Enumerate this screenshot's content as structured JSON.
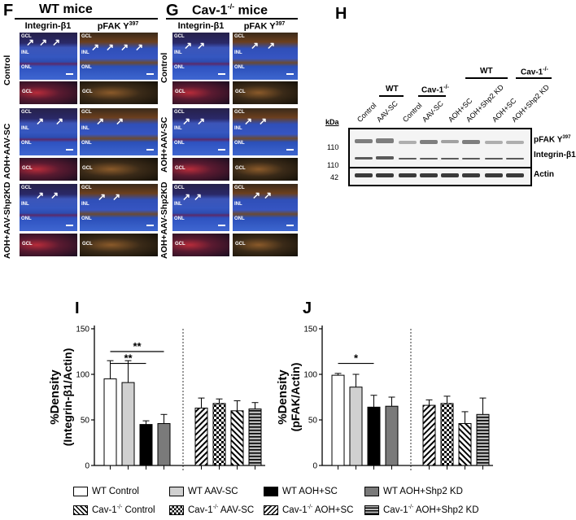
{
  "panels": {
    "F": {
      "letter": "F",
      "title": "WT mice",
      "col1": "Integrin-β1",
      "col2": "pFAK Y",
      "col2_sup": "397",
      "rows": [
        "Control",
        "AOH+AAV-SC",
        "AOH+AAV-Shp2KD"
      ]
    },
    "G": {
      "letter": "G",
      "title": "Cav-1",
      "title_sup": "-/-",
      "title_rest": " mice",
      "col1": "Integrin-β1",
      "col2": "pFAK Y",
      "col2_sup": "397",
      "rows": [
        "Control",
        "AOH+AAV-SC",
        "AOH+AAV-Shp2KD"
      ]
    },
    "tile_layers": {
      "gcl": "GCL",
      "inl": "INL",
      "onl": "ONL"
    },
    "H": {
      "letter": "H",
      "kda": "kDa",
      "group_wt": "WT",
      "group_cav": "Cav-1",
      "group_cav_sup": "-/-",
      "lanes": [
        "Control",
        "AAV-SC",
        "Control",
        "AAV-SC",
        "AOH+SC",
        "AOH+Shp2 KD",
        "AOH+SC",
        "AOH+Shp2 KD"
      ],
      "markers": [
        "110",
        "110",
        "42"
      ],
      "bands": [
        "pFAK Y",
        "Integrin-β1",
        "Actin"
      ],
      "band_sup": "397"
    },
    "I": {
      "letter": "I"
    },
    "J": {
      "letter": "J"
    }
  },
  "chart_data": [
    {
      "type": "bar",
      "panel": "I",
      "ylabel": "%Density (Integrin-β1/Actin)",
      "ylim": [
        0,
        150
      ],
      "yticks": [
        0,
        50,
        100,
        150
      ],
      "categories": [
        "WT Control",
        "WT AAV-SC",
        "WT AOH+SC",
        "WT AOH+Shp2 KD",
        "Cav-1-/- Control",
        "Cav-1-/- AAV-SC",
        "Cav-1-/- AOH+SC",
        "Cav-1-/- AOH+Shp2 KD"
      ],
      "values": [
        95,
        91,
        45,
        46,
        63,
        68,
        60,
        62
      ],
      "errors": [
        20,
        24,
        4,
        10,
        11,
        5,
        11,
        7
      ],
      "significance": [
        {
          "from": 0,
          "to": 3,
          "label": "**"
        },
        {
          "from": 0,
          "to": 2,
          "label": "**"
        }
      ]
    },
    {
      "type": "bar",
      "panel": "J",
      "ylabel": "%Density (pFAK/Actin)",
      "ylim": [
        0,
        150
      ],
      "yticks": [
        0,
        50,
        100,
        150
      ],
      "categories": [
        "WT Control",
        "WT AAV-SC",
        "WT AOH+SC",
        "WT AOH+Shp2 KD",
        "Cav-1-/- Control",
        "Cav-1-/- AAV-SC",
        "Cav-1-/- AOH+SC",
        "Cav-1-/- AOH+Shp2 KD"
      ],
      "values": [
        99,
        86,
        64,
        65,
        66,
        68,
        46,
        56
      ],
      "errors": [
        2,
        14,
        13,
        10,
        6,
        8,
        13,
        18
      ],
      "significance": [
        {
          "from": 0,
          "to": 2,
          "label": "*"
        }
      ]
    }
  ],
  "legend": {
    "items": [
      {
        "label": "WT Control",
        "fill": "white"
      },
      {
        "label": "WT AAV-SC",
        "fill": "lightgray"
      },
      {
        "label": "WT AOH+SC",
        "fill": "black"
      },
      {
        "label": "WT AOH+Shp2 KD",
        "fill": "gray"
      },
      {
        "label": "Control",
        "prefix": "Cav-1",
        "sup": "-/-",
        "fill": "hatch-d"
      },
      {
        "label": "AAV-SC",
        "prefix": "Cav-1",
        "sup": "-/-",
        "fill": "check"
      },
      {
        "label": "AOH+SC",
        "prefix": "Cav-1",
        "sup": "-/-",
        "fill": "hatch-u"
      },
      {
        "label": "AOH+Shp2 KD",
        "prefix": "Cav-1",
        "sup": "-/-",
        "fill": "hgrid"
      }
    ]
  },
  "colors": {
    "bar_light": "#d0d0d0",
    "bar_gray": "#7a7a7a",
    "bar_black": "#000000"
  }
}
